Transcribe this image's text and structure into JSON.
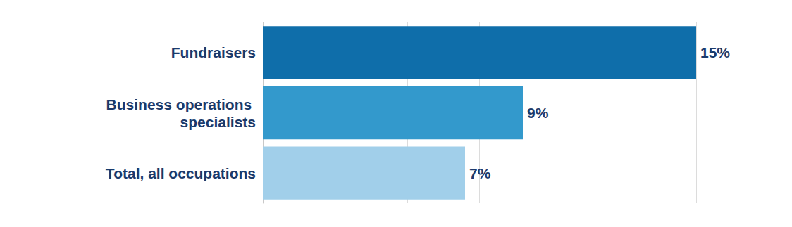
{
  "chart_data": {
    "type": "bar",
    "orientation": "horizontal",
    "categories": [
      "Fundraisers",
      "Business operations specialists",
      "Total, all occupations"
    ],
    "values": [
      15,
      9,
      7
    ],
    "value_labels": [
      "15%",
      "9%",
      "7%"
    ],
    "colors": [
      "#0f6eaa",
      "#3399cc",
      "#a1cfea"
    ],
    "xlim": [
      0,
      15
    ],
    "xticks": [
      0,
      2.5,
      5,
      7.5,
      10,
      12.5,
      15
    ],
    "grid": true,
    "data_labels": true,
    "tick_labels": "y"
  }
}
